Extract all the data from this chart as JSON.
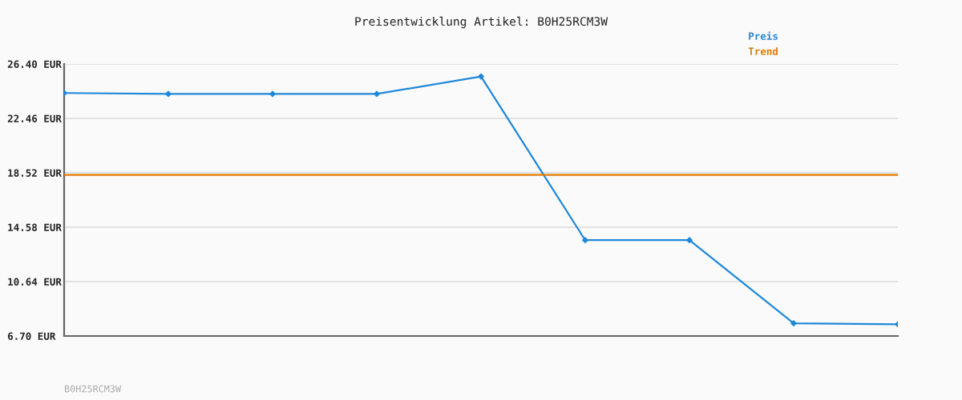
{
  "chart_data": {
    "type": "line",
    "title": "Preisentwicklung Artikel: B0H25RCM3W",
    "categories": [
      null,
      null,
      null,
      null,
      null,
      null,
      null,
      null,
      null
    ],
    "series": [
      {
        "name": "Preis",
        "color": "#1f88d8",
        "marker": "diamond",
        "values": [
          24.3,
          24.23,
          24.23,
          24.23,
          25.5,
          13.64,
          13.64,
          7.62,
          7.55
        ]
      },
      {
        "name": "Trend",
        "color": "#e07b00",
        "marker": "none",
        "values": [
          18.37,
          18.37,
          18.37,
          18.37,
          18.37,
          18.37,
          18.37,
          18.37,
          18.37
        ]
      }
    ],
    "ylim": [
      6.7,
      26.4
    ],
    "yticks": [
      {
        "value": 6.7,
        "label": "6.70 EUR"
      },
      {
        "value": 10.64,
        "label": "10.64 EUR"
      },
      {
        "value": 14.58,
        "label": "14.58 EUR"
      },
      {
        "value": 18.52,
        "label": "18.52 EUR"
      },
      {
        "value": 22.46,
        "label": "22.46 EUR"
      },
      {
        "value": 26.4,
        "label": "26.40 EUR"
      }
    ],
    "grid": "y",
    "legend": "top right",
    "line_style": "solid",
    "annotations": [
      "B0H25RCM3W"
    ]
  }
}
